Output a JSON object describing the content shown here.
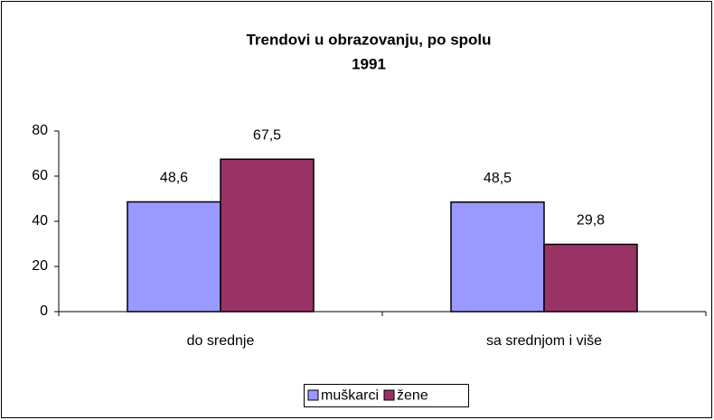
{
  "chart_data": {
    "type": "bar",
    "title": "Trendovi u obrazovanju, po spolu",
    "subtitle": "1991",
    "categories": [
      "do srednje",
      "sa srednjom i više"
    ],
    "series": [
      {
        "name": "muškarci",
        "color": "#9999ff",
        "values": [
          48.6,
          48.5
        ],
        "value_labels": [
          "48,6",
          "48,5"
        ]
      },
      {
        "name": "žene",
        "color": "#993366",
        "values": [
          67.5,
          29.8
        ],
        "value_labels": [
          "67,5",
          "29,8"
        ]
      }
    ],
    "ylim": [
      0,
      80
    ],
    "yticks": [
      0,
      20,
      40,
      60,
      80
    ],
    "grid": false,
    "legend": "bottom"
  }
}
